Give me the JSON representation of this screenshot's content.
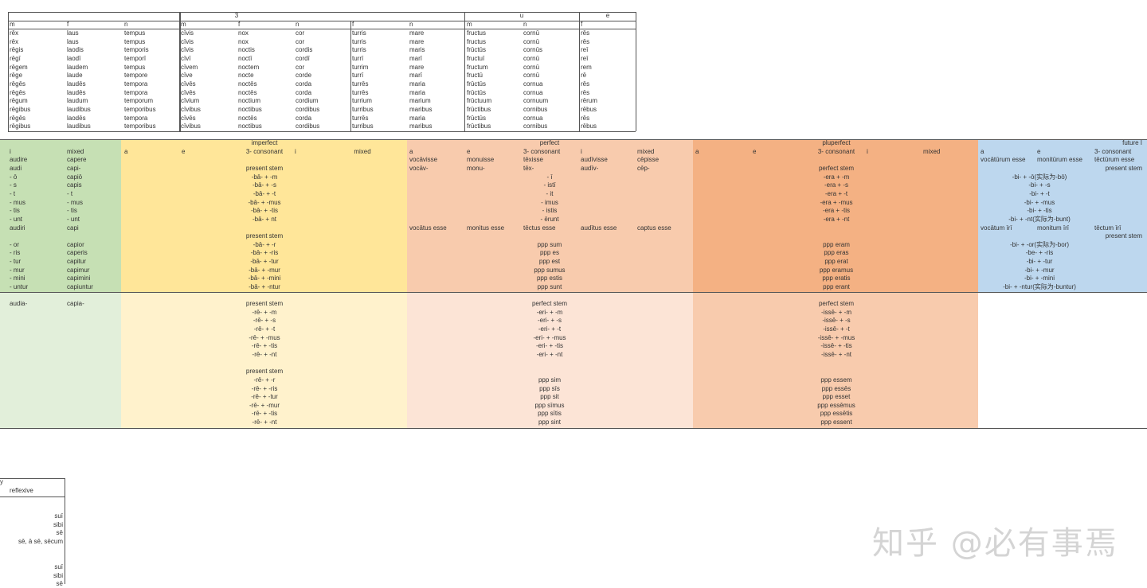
{
  "top_table": {
    "group_headers": [
      "3",
      "u",
      "e"
    ],
    "col_headers": [
      "m",
      "f",
      "n",
      "m",
      "f",
      "n",
      "f",
      "n",
      "m",
      "n",
      "f"
    ],
    "rows": [
      [
        "rēx",
        "laus",
        "tempus",
        "cīvis",
        "nox",
        "cor",
        "turris",
        "mare",
        "fructus",
        "cornū",
        "rēs"
      ],
      [
        "rēx",
        "laus",
        "tempus",
        "cīvis",
        "nox",
        "cor",
        "turris",
        "mare",
        "fructus",
        "cornū",
        "rēs"
      ],
      [
        "rēgis",
        "laodis",
        "temporis",
        "cīvis",
        "noctis",
        "cordis",
        "turris",
        "maris",
        "frūctūs",
        "cornūs",
        "reī"
      ],
      [
        "rēgī",
        "laodī",
        "temporī",
        "cīvī",
        "noctī",
        "cordī",
        "turrī",
        "marī",
        "fructuī",
        "cornū",
        "reī"
      ],
      [
        "rēgem",
        "laudem",
        "tempus",
        "cīvem",
        "noctem",
        "cor",
        "turrim",
        "mare",
        "fructum",
        "cornū",
        "rem"
      ],
      [
        "rēge",
        "laude",
        "tempore",
        "cīve",
        "nocte",
        "corde",
        "turrī",
        "marī",
        "fructū",
        "cornū",
        "rē"
      ],
      [
        "rēgēs",
        "laudēs",
        "tempora",
        "cīvēs",
        "noctēs",
        "corda",
        "turrēs",
        "maria",
        "frūctūs",
        "cornua",
        "rēs"
      ],
      [
        "rēgēs",
        "laudēs",
        "tempora",
        "cīvēs",
        "noctēs",
        "corda",
        "turrēs",
        "maria",
        "frūctūs",
        "cornua",
        "rēs"
      ],
      [
        "rēgum",
        "laudum",
        "temporum",
        "cīvium",
        "noctium",
        "cordium",
        "turrium",
        "marium",
        "frūctuum",
        "cornuum",
        "rērum"
      ],
      [
        "rēgibus",
        "laudibus",
        "temporibus",
        "cīvibus",
        "noctibus",
        "cordibus",
        "turribus",
        "maribus",
        "frūctibus",
        "cornibus",
        "rēbus"
      ],
      [
        "rēgēs",
        "laodēs",
        "tempora",
        "cīvēs",
        "noctēs",
        "corda",
        "turrēs",
        "maria",
        "frūctūs",
        "cornua",
        "rēs"
      ],
      [
        "rēgibus",
        "laudibus",
        "temporibus",
        "cīvibus",
        "noctibus",
        "cordibus",
        "turribus",
        "maribus",
        "frūctibus",
        "cornibus",
        "rēbus"
      ]
    ]
  },
  "colors": {
    "green": "#c6e0b4",
    "green_light": "#e2efda",
    "yellow": "#ffe699",
    "yellow_light": "#fff2cc",
    "perfect": "#f8cbad",
    "perfect_light": "#fce4d6",
    "pluperfect": "#f4b183",
    "pluperfect_light": "#f8cbad",
    "future": "#bdd7ee"
  },
  "conjugation": {
    "upper": {
      "g_i": [
        "",
        "i",
        "audire",
        "audi",
        "- ō",
        "- s",
        "- t",
        "- mus",
        "- tis",
        "- unt",
        "audiri",
        "",
        "- or",
        "- ris",
        "- tur",
        "- mur",
        "- mini",
        "- untur"
      ],
      "g_mixed": [
        "",
        "mixed",
        "capere",
        "capi-",
        "capiō",
        "capis",
        "- t",
        "- mus",
        "- tis",
        "- unt",
        "capi",
        "",
        "capior",
        "caperis",
        "capitur",
        "capimur",
        "capimini",
        "capiuntur"
      ],
      "imp_a": [
        "",
        "a"
      ],
      "imp_e": [
        "",
        "e"
      ],
      "imp_i": [
        "",
        "i"
      ],
      "imp_mixed": [
        "",
        "mixed"
      ],
      "imp_center": [
        "imperfect",
        "3- consonant",
        "",
        "present stem",
        "-bā- + -m",
        "-bā- + -s",
        "-bā- + -t",
        "-bā- + -mus",
        "-bā- + -tis",
        "-bā- + nt",
        "",
        "present stem",
        "-bā- + -r",
        "-bā- + -ris",
        "-bā- + -tur",
        "-bā- + -mur",
        "-bā- + -mini",
        "-bā- + -ntur"
      ],
      "perf_a": [
        "",
        "a",
        "vocāvisse",
        "vocāv-",
        "",
        "",
        "",
        "",
        "",
        "",
        "vocātus esse"
      ],
      "perf_e": [
        "",
        "e",
        "monuisse",
        "monu-",
        "",
        "",
        "",
        "",
        "",
        "",
        "monitus esse"
      ],
      "perf_cons": [
        "",
        "3- consonant",
        "tēxisse",
        "tēx-",
        "",
        "",
        "",
        "",
        "",
        "",
        "tēctus esse"
      ],
      "perf_i": [
        "",
        "i",
        "audīvisse",
        "audīv-",
        "",
        "",
        "",
        "",
        "",
        "",
        "audītus esse"
      ],
      "perf_mixed": [
        "",
        "mixed",
        "cēpisse",
        "cēp-",
        "",
        "",
        "",
        "",
        "",
        "",
        "captus esse"
      ],
      "perf_center": [
        "perfect",
        "",
        "",
        "",
        "- ī",
        "- istī",
        "- it",
        "- imus",
        "- istis",
        "- ērunt",
        "",
        "",
        "ppp sum",
        "ppp es",
        "ppp est",
        "ppp sumus",
        "ppp estis",
        "ppp sunt"
      ],
      "plu_a": [
        "",
        "a"
      ],
      "plu_e": [
        "",
        "e"
      ],
      "plu_i": [
        "",
        "i"
      ],
      "plu_mixed": [
        "",
        "mixed"
      ],
      "plu_center": [
        "pluperfect",
        "3- consonant",
        "",
        "perfect stem",
        "-era + -m",
        "-era + -s",
        "-era + -t",
        "-era + -mus",
        "-era + -tis",
        "-era + -nt",
        "",
        "",
        "ppp eram",
        "ppp eras",
        "ppp erat",
        "ppp eramus",
        "ppp eratis",
        "ppp erant"
      ],
      "fut_a": [
        "",
        "a",
        "vocātūrum esse",
        "",
        "",
        "",
        "",
        "",
        "",
        "",
        "vocātum īrī"
      ],
      "fut_e": [
        "",
        "e",
        "monitūrum esse",
        "",
        "",
        "",
        "",
        "",
        "",
        "",
        "monitum īrī"
      ],
      "fut_cons": [
        "",
        "3- consonant",
        "tēctūrum esse",
        "",
        "",
        "",
        "",
        "",
        "",
        "",
        "tēctum īrī"
      ],
      "fut_right": [
        "future I",
        "",
        "",
        "present stem",
        "",
        "",
        "",
        "",
        "",
        "",
        "",
        "present stem"
      ],
      "fut_center": [
        "",
        "",
        "",
        "",
        "-bi- + -ō(实际为-bō)",
        "-bi- + -s",
        "-bi- + -t",
        "-bi- + -mus",
        "-bi- + -tis",
        "-bi- + -nt(实际为-bunt)",
        "",
        "",
        "-bi- + -or(实际为-bor)",
        "-be- + -ris",
        "-bi- + -tur",
        "-bi- + -mur",
        "-bi- + -mini",
        "-bi- + -ntur(实际为-buntur)"
      ]
    },
    "lower": {
      "g_i": [
        "audia-"
      ],
      "g_mixed": [
        "capia-"
      ],
      "imp_center": [
        "present stem",
        "-rē- + -m",
        "-rē- + -s",
        "-rē- + -t",
        "-rē- + -mus",
        "-rē- + -tis",
        "-rē- + -nt",
        "",
        "present stem",
        "-rē- + -r",
        "-rē- + -ris",
        "-rē- + -tur",
        "-rē- + -mur",
        "-rē- + -tis",
        "-rē- + -nt"
      ],
      "perf_center": [
        "perfect stem",
        "-eri- + -m",
        "-eri- + -s",
        "-eri- + -t",
        "-eri- + -mus",
        "-eri- + -tis",
        "-eri- + -nt",
        "",
        "",
        "ppp sim",
        "ppp sīs",
        "ppp sit",
        "ppp sīmus",
        "ppp sītis",
        "ppp sint"
      ],
      "plu_center": [
        "perfect stem",
        "-issē- + -m",
        "-issē- + -s",
        "-issē- + -t",
        "-issē- + -mus",
        "-issē- + -tis",
        "-issē- + -nt",
        "",
        "",
        "ppp essem",
        "ppp essēs",
        "ppp esset",
        "ppp essēmus",
        "ppp essētis",
        "ppp essent"
      ]
    }
  },
  "pronoun_table": {
    "header_fragment": "y",
    "column_header": "reflexive",
    "forms": [
      "suī",
      "sibi",
      "sē",
      "sē, ā sē, sēcum",
      "",
      "",
      "suī",
      "sibi",
      "sē"
    ]
  },
  "watermark": "知乎 @必有事焉"
}
